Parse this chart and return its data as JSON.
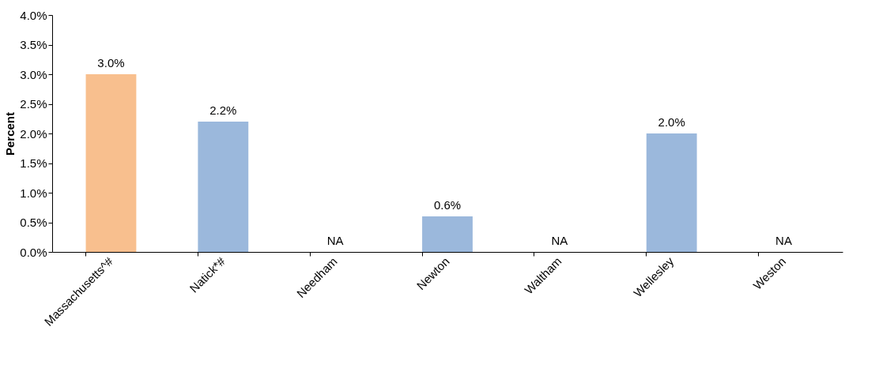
{
  "chart_data": {
    "type": "bar",
    "ylabel": "Percent",
    "categories": [
      "Massachusetts^#",
      "Natick*#",
      "Needham",
      "Newton",
      "Waltham",
      "Wellesley",
      "Weston"
    ],
    "values": [
      3.0,
      2.2,
      null,
      0.6,
      null,
      2.0,
      null
    ],
    "colors": [
      "#f8bf8e",
      "#9bb8dc",
      "#9bb8dc",
      "#9bb8dc",
      "#9bb8dc",
      "#9bb8dc",
      "#9bb8dc"
    ],
    "value_labels": [
      "3.0%",
      "2.2%",
      "NA",
      "0.6%",
      "NA",
      "2.0%",
      "NA"
    ],
    "ylim": [
      0,
      4
    ],
    "yticks": [
      {
        "value": 0,
        "label": "0.0%"
      },
      {
        "value": 0.5,
        "label": "0.5%"
      },
      {
        "value": 1,
        "label": "1.0%"
      },
      {
        "value": 1.5,
        "label": "1.5%"
      },
      {
        "value": 2,
        "label": "2.0%"
      },
      {
        "value": 2.5,
        "label": "2.5%"
      },
      {
        "value": 3,
        "label": "3.0%"
      },
      {
        "value": 3.5,
        "label": "3.5%"
      },
      {
        "value": 4,
        "label": "4.0%"
      }
    ],
    "grid": false
  }
}
